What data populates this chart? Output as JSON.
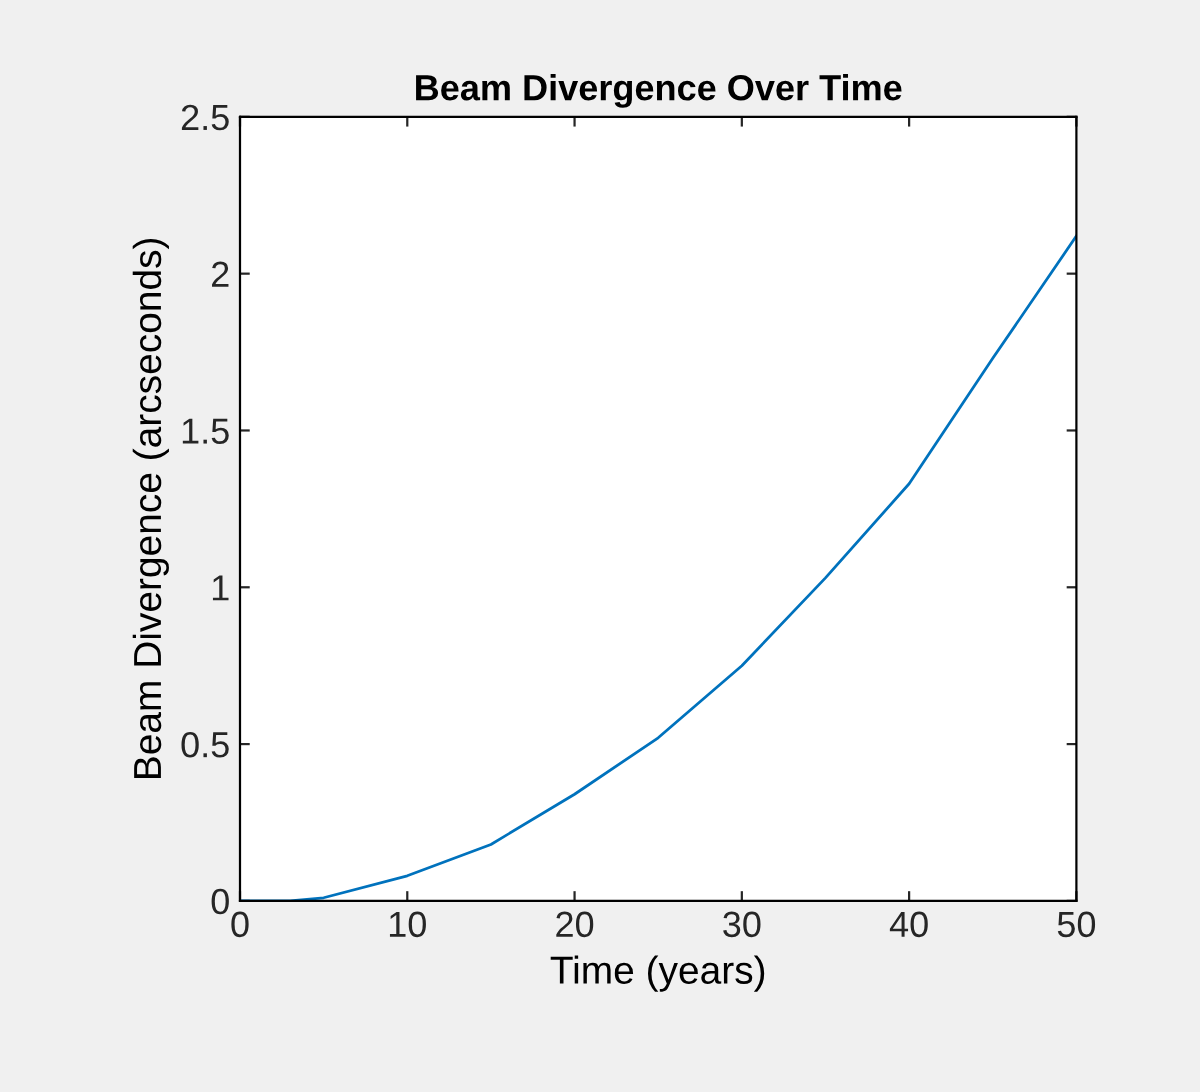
{
  "chart_data": {
    "type": "line",
    "title": "Beam Divergence Over Time",
    "xlabel": "Time (years)",
    "ylabel": "Beam Divergence (arcseconds)",
    "x": [
      0,
      3,
      5,
      10,
      15,
      20,
      25,
      30,
      35,
      40,
      45,
      50
    ],
    "series": [
      {
        "color": "#0072bd",
        "values": [
          0,
          0,
          0.01,
          0.08,
          0.18,
          0.34,
          0.52,
          0.75,
          1.03,
          1.33,
          1.73,
          2.12
        ]
      }
    ],
    "xlim": [
      0,
      50
    ],
    "ylim": [
      0,
      2.5
    ],
    "xticks": [
      0,
      10,
      20,
      30,
      40,
      50
    ],
    "yticks": [
      0,
      0.5,
      1,
      1.5,
      2,
      2.5
    ],
    "grid": false
  }
}
